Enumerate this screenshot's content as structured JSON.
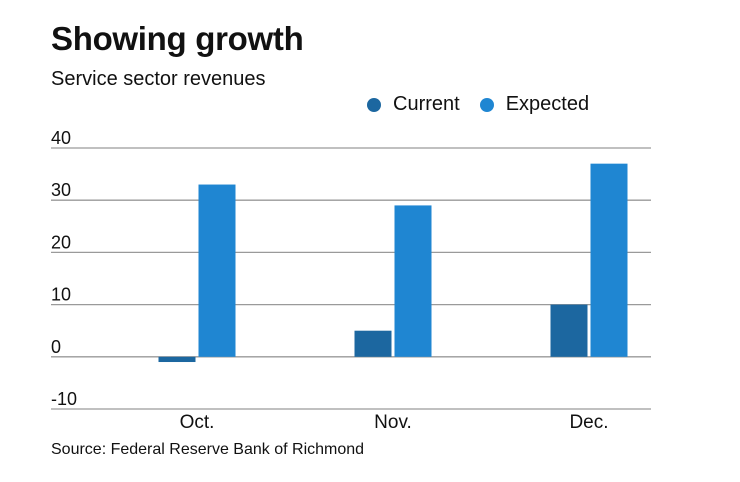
{
  "chart_data": {
    "type": "bar",
    "title": "Showing growth",
    "subtitle": "Service sector revenues",
    "categories": [
      "Oct.",
      "Nov.",
      "Dec."
    ],
    "series": [
      {
        "name": "Current",
        "color": "#1c67a0",
        "values": [
          -1,
          5,
          10
        ]
      },
      {
        "name": "Expected",
        "color": "#1f86d2",
        "values": [
          33,
          29,
          37
        ]
      }
    ],
    "xlabel": "",
    "ylabel": "",
    "ylim": [
      -10,
      40
    ],
    "yticks": [
      40,
      30,
      20,
      10,
      0,
      -10
    ],
    "grid": true,
    "legend_position": "top-right",
    "source": "Source: Federal Reserve Bank of Richmond"
  }
}
